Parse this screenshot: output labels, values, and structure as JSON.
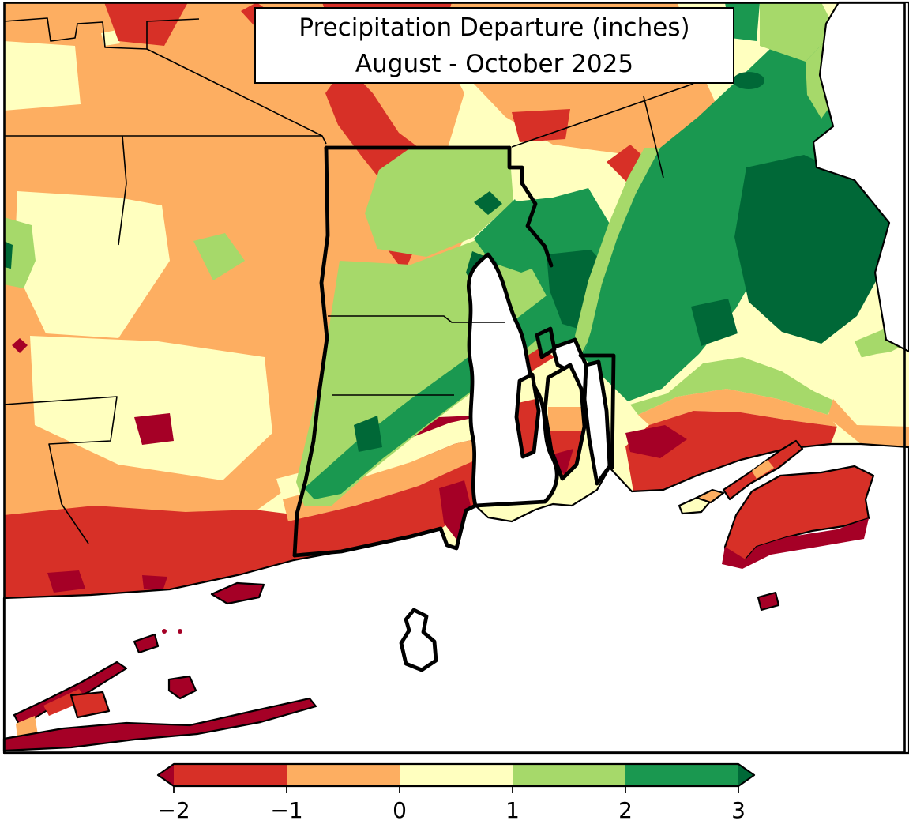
{
  "figure": {
    "kind": "filled contour precipitation anomaly map",
    "region": "Southern New England: Rhode Island (bold outline), eastern Connecticut, southeastern Massachusetts, eastern Long Island NY"
  },
  "title": {
    "line1": "Precipitation Departure (inches)",
    "line2": "August - October 2025"
  },
  "colorbar": {
    "orientation": "horizontal",
    "units": "inches",
    "tick_labels": [
      "−2",
      "−1",
      "0",
      "1",
      "2",
      "3"
    ],
    "bin_colors": [
      "#d73027",
      "#fdae61",
      "#ffffbf",
      "#a6d96a",
      "#1a9850"
    ],
    "extend": "both",
    "under_color": "#a50026",
    "over_color": "#006837"
  },
  "palette": {
    "below_minus2": "#a50026",
    "minus2_to_minus1": "#d73027",
    "minus1_to_0": "#fdae61",
    "zero_to_1": "#ffffbf",
    "one_to_2": "#a6d96a",
    "two_to_3": "#1a9850",
    "above_3": "#006837",
    "ocean": "#ffffff",
    "boundary": "#000000"
  },
  "chart_data": {
    "type": "heatmap",
    "subtype": "filled-contour-geographic-map",
    "title": "Precipitation Departure (inches) August - October 2025",
    "colorbar_ticks": [
      -2,
      -1,
      0,
      1,
      2,
      3
    ],
    "colorbar_extend": "both",
    "legend_position": "bottom",
    "regions": [
      {
        "area": "western and central Connecticut interior",
        "value_in": "-2 to -1"
      },
      {
        "area": "central Connecticut red streaks",
        "value_in": "-2 to -1"
      },
      {
        "area": "Connecticut shoreline fringe",
        "value_in": "below -2"
      },
      {
        "area": "northeastern Connecticut and northwest Rhode Island",
        "value_in": "0 to 1"
      },
      {
        "area": "central Rhode Island diagonal band",
        "value_in": "2 to 3"
      },
      {
        "area": "east of Providence / upper Narragansett Bay shores",
        "value_in": "above 3"
      },
      {
        "area": "southeastern Massachusetts (Bristol/Plymouth)",
        "value_in": "2 to above 3"
      },
      {
        "area": "south coastal Rhode Island, Point Judith, Newport",
        "value_in": "-2 to below -2"
      },
      {
        "area": "Block Island",
        "value_in": "below -2"
      },
      {
        "area": "eastern Long Island NY, Fishers Island, Gardiners Island",
        "value_in": "below -2"
      },
      {
        "area": "Martha's Vineyard",
        "value_in": "-2 to below -2"
      },
      {
        "area": "Elizabeth Islands",
        "value_in": "-2 to 0"
      }
    ]
  }
}
